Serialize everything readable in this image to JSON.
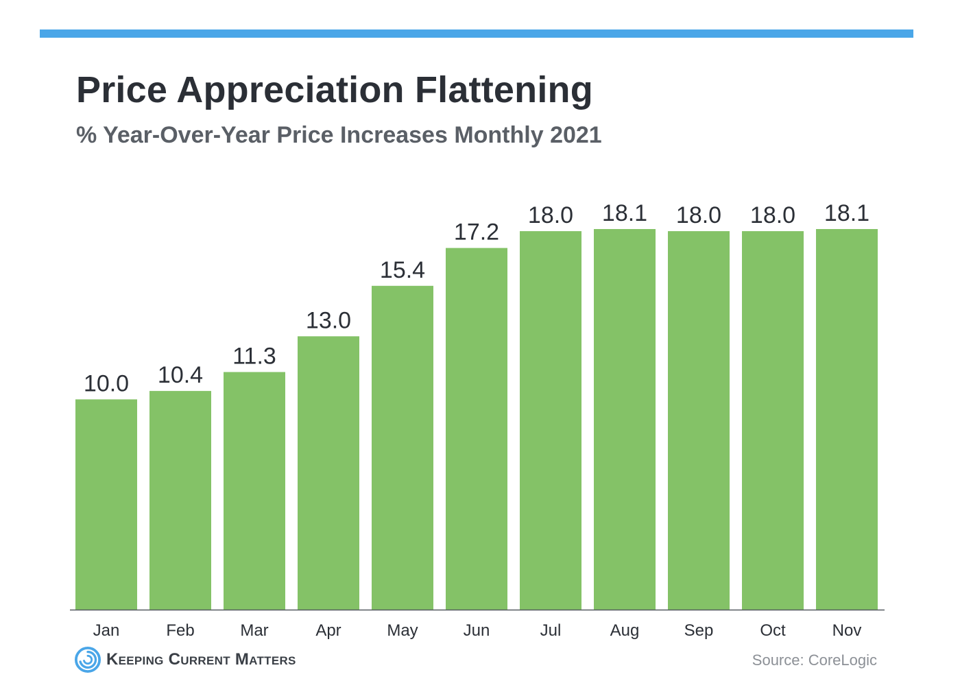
{
  "colors": {
    "accent_rule": "#4aa6e8",
    "bar": "#84c267",
    "text_dark": "#2b2f36",
    "text_muted": "#8c9096"
  },
  "footer": {
    "brand_icon": "spiral-logo-icon",
    "brand_name": "Keeping Current Matters",
    "source": "Source: CoreLogic"
  },
  "chart_data": {
    "type": "bar",
    "title": "Price Appreciation Flattening",
    "subtitle": "% Year-Over-Year Price Increases Monthly 2021",
    "categories": [
      "Jan",
      "Feb",
      "Mar",
      "Apr",
      "May",
      "Jun",
      "Jul",
      "Aug",
      "Sep",
      "Oct",
      "Nov"
    ],
    "values": [
      10.0,
      10.4,
      11.3,
      13.0,
      15.4,
      17.2,
      18.0,
      18.1,
      18.0,
      18.0,
      18.1
    ],
    "value_labels": [
      "10.0",
      "10.4",
      "11.3",
      "13.0",
      "15.4",
      "17.2",
      "18.0",
      "18.1",
      "18.0",
      "18.0",
      "18.1"
    ],
    "xlabel": "",
    "ylabel": "",
    "ylim": [
      0,
      18.1
    ],
    "grid": false,
    "legend": "none",
    "data_labels": true
  }
}
